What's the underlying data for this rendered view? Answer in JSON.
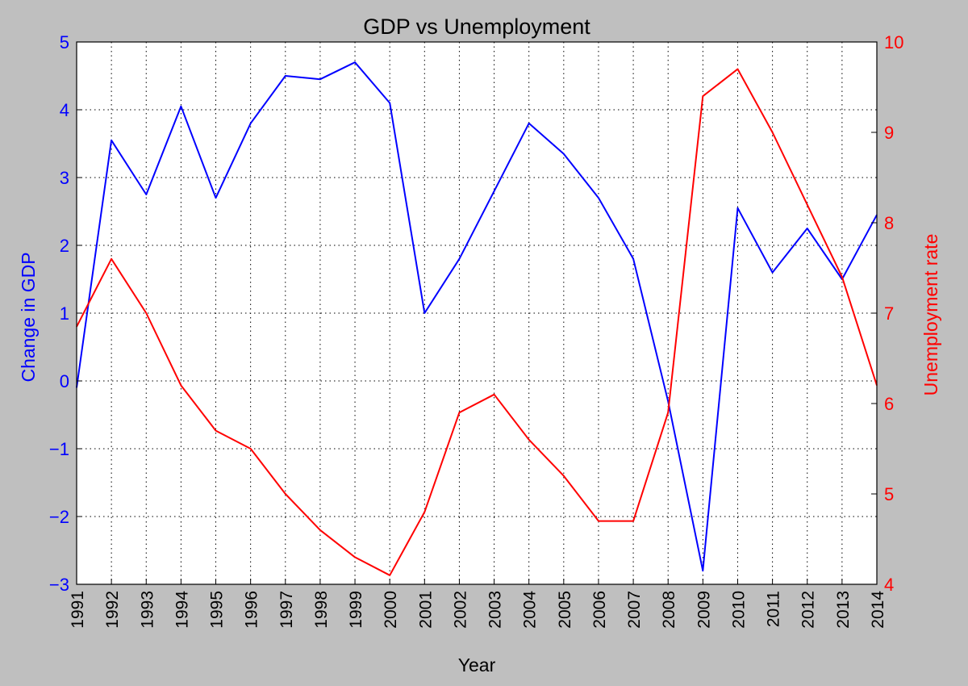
{
  "chart_data": {
    "type": "line",
    "title": "GDP vs Unemployment",
    "xlabel": "Year",
    "ylabel_left": "Change in GDP",
    "ylabel_right": "Unemployment rate",
    "x": [
      1991,
      1992,
      1993,
      1994,
      1995,
      1996,
      1997,
      1998,
      1999,
      2000,
      2001,
      2002,
      2003,
      2004,
      2005,
      2006,
      2007,
      2008,
      2009,
      2010,
      2011,
      2012,
      2013,
      2014
    ],
    "xlim": [
      1991,
      2014
    ],
    "ylim_left": [
      -3,
      5
    ],
    "ylim_right": [
      4,
      10
    ],
    "xticks": [
      "1991",
      "1992",
      "1993",
      "1994",
      "1995",
      "1996",
      "1997",
      "1998",
      "1999",
      "2000",
      "2001",
      "2002",
      "2003",
      "2004",
      "2005",
      "2006",
      "2007",
      "2008",
      "2009",
      "2010",
      "2011",
      "2012",
      "2013",
      "2014"
    ],
    "yticks_left": [
      "5",
      "4",
      "3",
      "2",
      "1",
      "0",
      "−1",
      "−2",
      "−3"
    ],
    "yticks_right": [
      "10",
      "9",
      "8",
      "7",
      "6",
      "5",
      "4"
    ],
    "grid": true,
    "series": [
      {
        "axis": "left",
        "color": "#0000ff",
        "values": [
          -0.1,
          3.55,
          2.75,
          4.05,
          2.7,
          3.8,
          4.5,
          4.45,
          4.7,
          4.1,
          1.0,
          1.8,
          2.8,
          3.8,
          3.35,
          2.7,
          1.8,
          -0.3,
          -2.8,
          2.55,
          1.6,
          2.25,
          1.5,
          2.45
        ]
      },
      {
        "axis": "right",
        "color": "#ff0000",
        "values": [
          6.85,
          7.6,
          7.0,
          6.2,
          5.7,
          5.5,
          5.0,
          4.6,
          4.3,
          4.1,
          4.8,
          5.9,
          6.1,
          5.6,
          5.2,
          4.7,
          4.7,
          5.9,
          9.4,
          9.7,
          9.0,
          8.2,
          7.4,
          6.2
        ]
      }
    ]
  }
}
